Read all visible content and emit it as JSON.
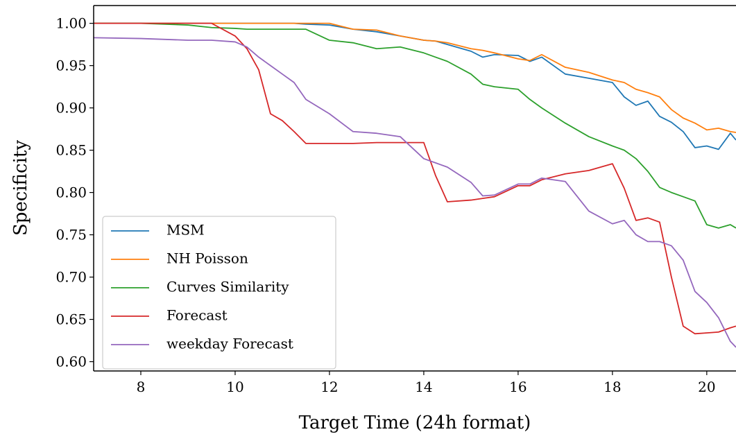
{
  "chart_data": {
    "type": "line",
    "x_label": "Target Time (24h format)",
    "y_label": "Specificity",
    "x": [
      7,
      8,
      9,
      9.5,
      10,
      10.25,
      10.5,
      10.75,
      11,
      11.25,
      11.5,
      12,
      12.5,
      13,
      13.5,
      14,
      14.25,
      14.5,
      15,
      15.25,
      15.5,
      16,
      16.25,
      16.5,
      17,
      17.5,
      18,
      18.25,
      18.5,
      18.75,
      19,
      19.25,
      19.5,
      19.75,
      20,
      20.25,
      20.5,
      20.62
    ],
    "series": [
      {
        "name": "MSM",
        "color": "#1f77b4",
        "values": [
          1,
          1,
          1,
          1,
          1,
          1,
          1,
          1,
          1,
          1,
          0.999,
          0.998,
          0.993,
          0.99,
          0.985,
          0.98,
          0.979,
          0.975,
          0.967,
          0.96,
          0.963,
          0.962,
          0.955,
          0.96,
          0.94,
          0.935,
          0.93,
          0.913,
          0.903,
          0.908,
          0.89,
          0.883,
          0.872,
          0.853,
          0.855,
          0.851,
          0.87,
          0.862
        ]
      },
      {
        "name": "NH Poisson",
        "color": "#ff7f0e",
        "values": [
          1,
          1,
          1,
          1,
          1,
          1,
          1,
          1,
          1,
          1,
          1,
          1.0,
          0.993,
          0.992,
          0.985,
          0.98,
          0.979,
          0.977,
          0.97,
          0.968,
          0.965,
          0.958,
          0.956,
          0.963,
          0.948,
          0.942,
          0.933,
          0.93,
          0.922,
          0.918,
          0.913,
          0.898,
          0.888,
          0.882,
          0.874,
          0.876,
          0.872,
          0.871
        ]
      },
      {
        "name": "Curves Similarity",
        "color": "#2ca02c",
        "values": [
          1,
          1,
          0.998,
          0.995,
          0.994,
          0.993,
          0.993,
          0.993,
          0.993,
          0.993,
          0.993,
          0.98,
          0.977,
          0.97,
          0.972,
          0.965,
          0.96,
          0.955,
          0.94,
          0.928,
          0.925,
          0.922,
          0.91,
          0.9,
          0.882,
          0.866,
          0.855,
          0.85,
          0.84,
          0.825,
          0.806,
          0.8,
          0.795,
          0.79,
          0.762,
          0.758,
          0.762,
          0.758
        ]
      },
      {
        "name": "Forecast",
        "color": "#d62728",
        "values": [
          1,
          1,
          1,
          1,
          0.985,
          0.97,
          0.945,
          0.893,
          0.885,
          0.872,
          0.858,
          0.858,
          0.858,
          0.859,
          0.859,
          0.859,
          0.82,
          0.789,
          0.791,
          0.793,
          0.795,
          0.808,
          0.808,
          0.815,
          0.822,
          0.826,
          0.834,
          0.805,
          0.767,
          0.77,
          0.765,
          0.7,
          0.642,
          0.633,
          0.634,
          0.635,
          0.64,
          0.642
        ]
      },
      {
        "name": "weekday Forecast",
        "color": "#9467bd",
        "values": [
          0.983,
          0.982,
          0.98,
          0.98,
          0.978,
          0.972,
          0.96,
          0.95,
          0.94,
          0.93,
          0.91,
          0.893,
          0.872,
          0.87,
          0.866,
          0.84,
          0.835,
          0.83,
          0.812,
          0.796,
          0.797,
          0.81,
          0.81,
          0.817,
          0.813,
          0.778,
          0.763,
          0.767,
          0.75,
          0.742,
          0.742,
          0.737,
          0.72,
          0.683,
          0.67,
          0.652,
          0.624,
          0.617
        ]
      }
    ],
    "xlim": [
      7,
      20.62
    ],
    "xticks": [
      8,
      10,
      12,
      14,
      16,
      18,
      20
    ],
    "ylim": [
      0.589,
      1.021
    ],
    "yticks": [
      {
        "value": 0.6,
        "label": "0.60"
      },
      {
        "value": 0.65,
        "label": "0.65"
      },
      {
        "value": 0.7,
        "label": "0.70"
      },
      {
        "value": 0.75,
        "label": "0.75"
      },
      {
        "value": 0.8,
        "label": "0.80"
      },
      {
        "value": 0.85,
        "label": "0.85"
      },
      {
        "value": 0.9,
        "label": "0.90"
      },
      {
        "value": 0.95,
        "label": "0.95"
      },
      {
        "value": 1.0,
        "label": "1.00"
      }
    ],
    "legend": "lower left",
    "grid": false
  }
}
